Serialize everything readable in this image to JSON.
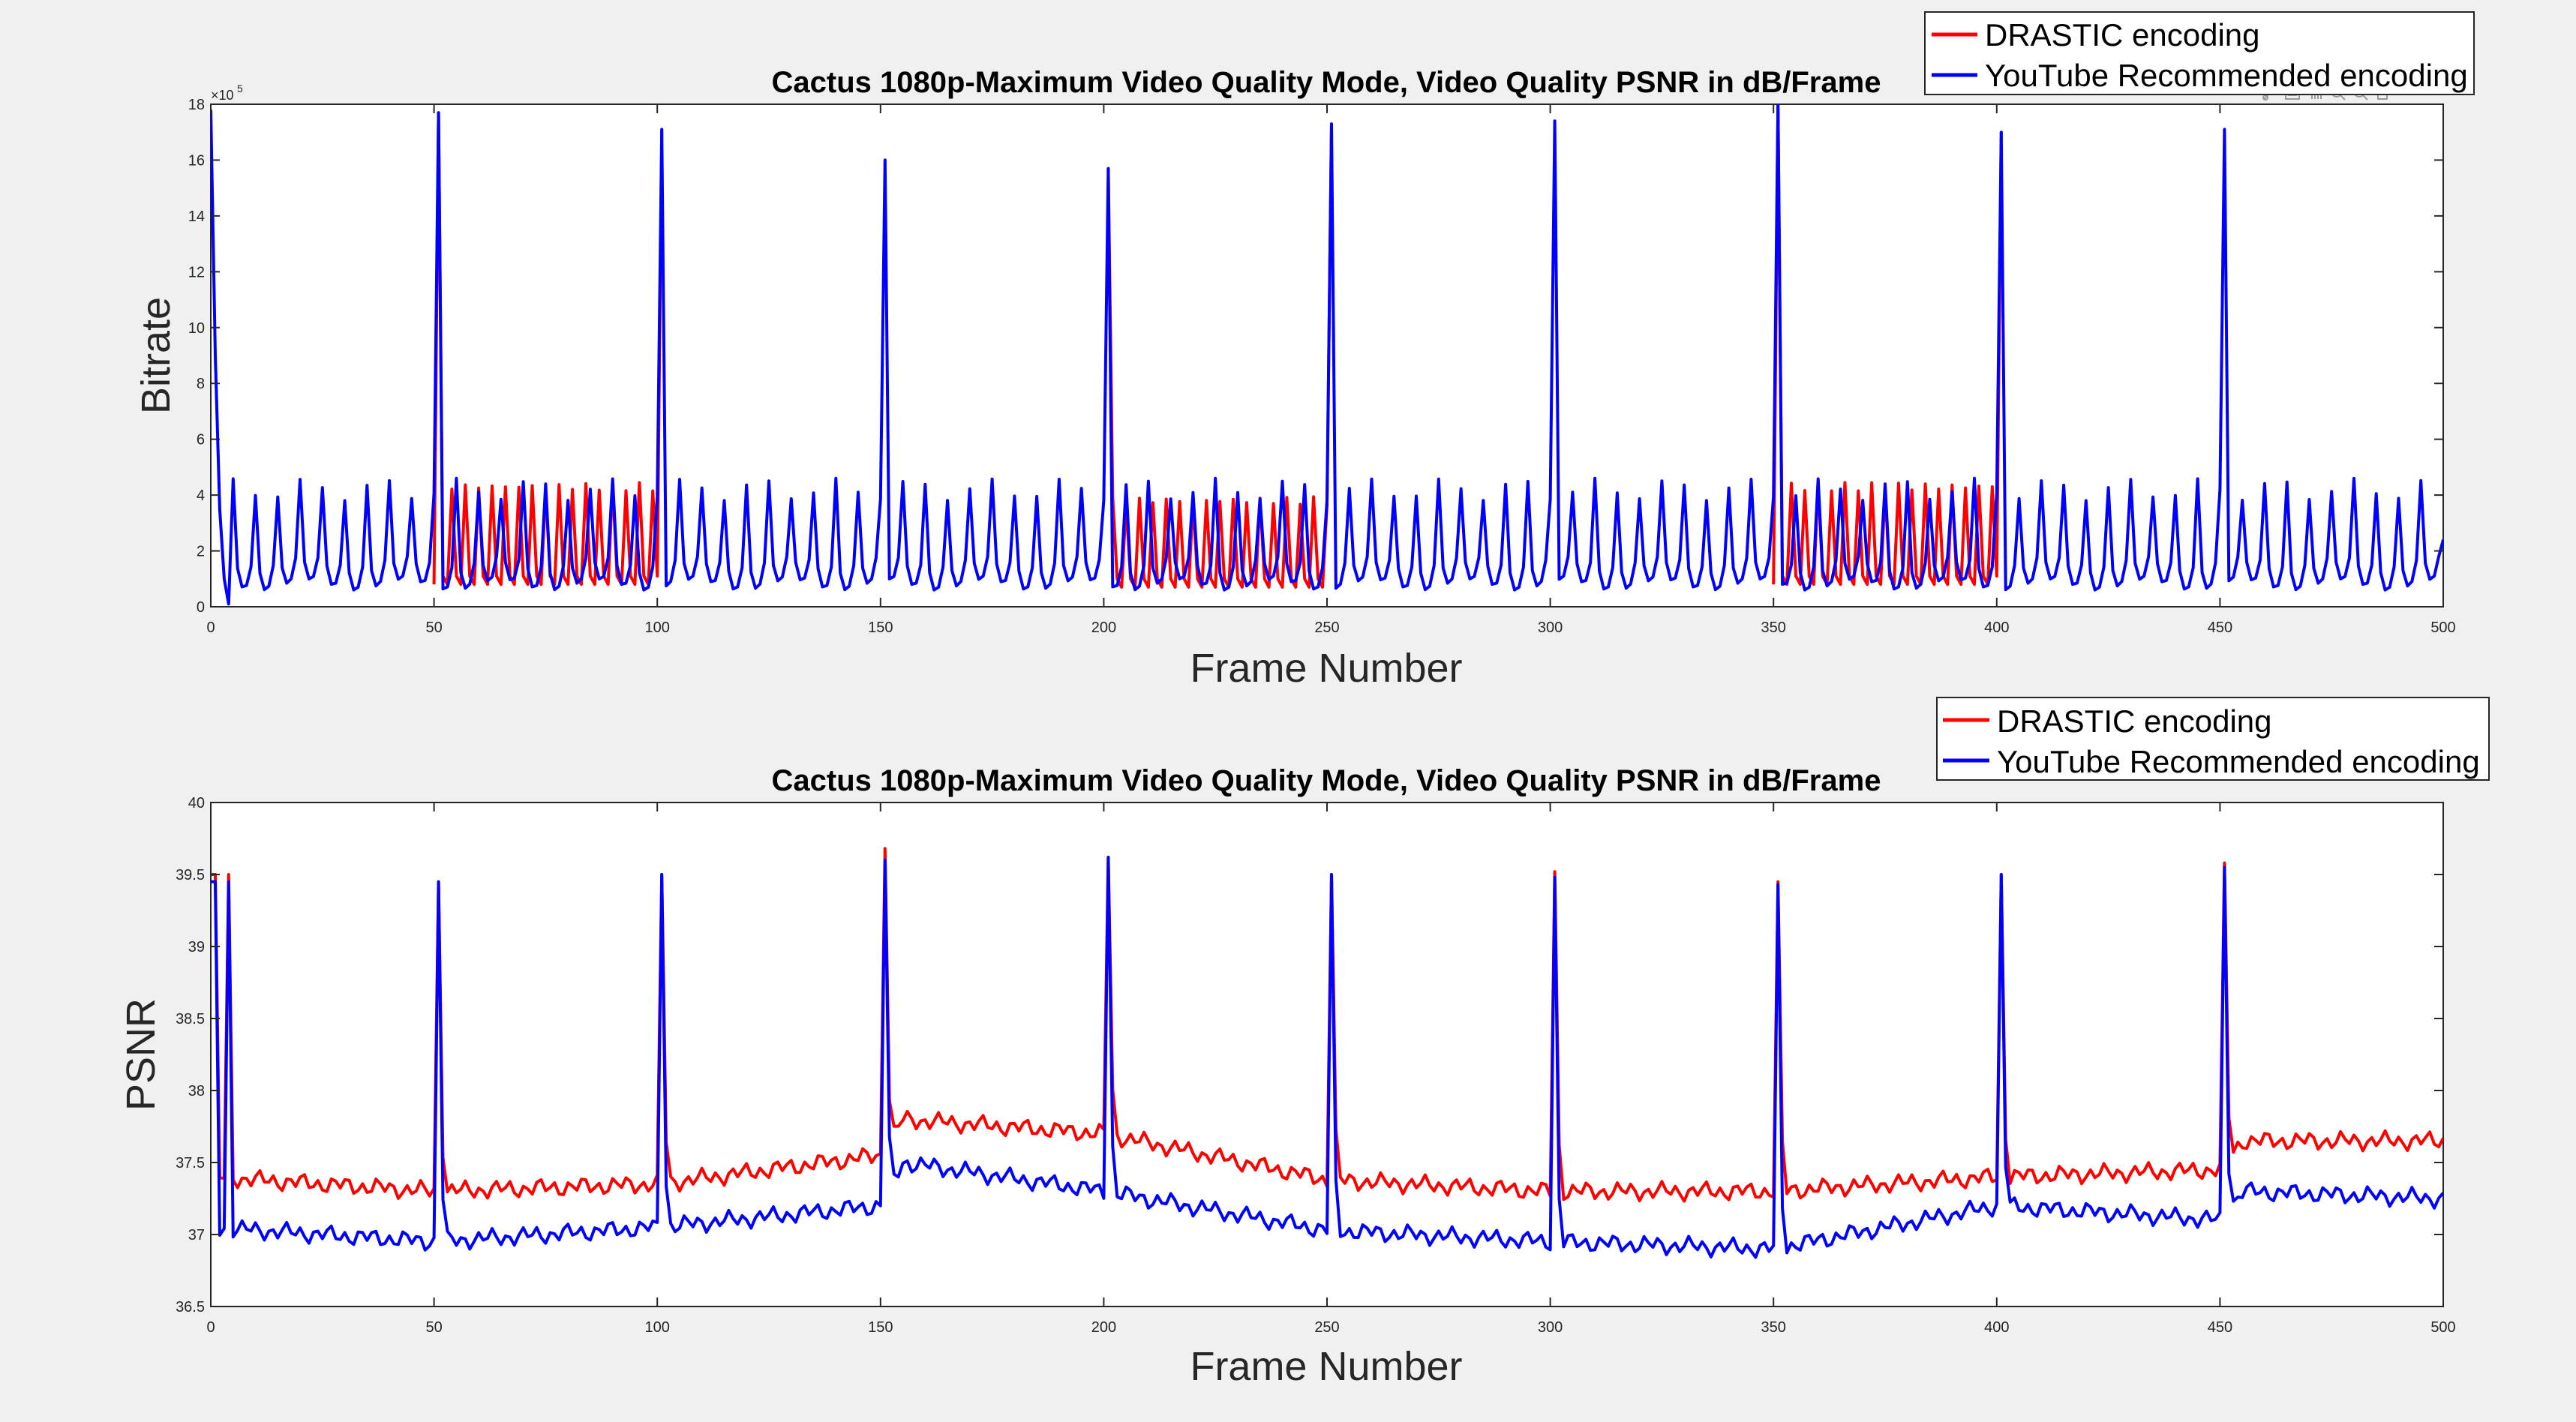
{
  "figure": {
    "toolbar": {
      "icons": [
        "brush-icon",
        "data-tips-icon",
        "pan-icon",
        "zoom-in-icon",
        "zoom-out-icon",
        "home-icon"
      ]
    }
  },
  "chart_data": [
    {
      "type": "line",
      "title": "Cactus 1080p-Maximum Video Quality Mode, Video Quality PSNR in dB/Frame",
      "xlabel": "Frame Number",
      "ylabel": "Bitrate",
      "xlim": [
        0,
        500
      ],
      "ylim": [
        0,
        1800000
      ],
      "y_exponent_label": "×10",
      "y_exponent_value": "5",
      "xticks": [
        "0",
        "50",
        "100",
        "150",
        "200",
        "250",
        "300",
        "350",
        "400",
        "450",
        "500"
      ],
      "yticks": [
        "0",
        "2",
        "4",
        "6",
        "8",
        "10",
        "12",
        "14",
        "16",
        "18"
      ],
      "grid": false,
      "legend_position": "top-right",
      "series": [
        {
          "name": "DRASTIC encoding",
          "color": "#ff0000",
          "segments": [
            {
              "start": 50,
              "end": 101,
              "peak_frames": [
                51,
                101
              ],
              "peak_values": [
                1770000,
                1710000
              ],
              "high": 430000,
              "low": 80000,
              "period": 3
            },
            {
              "start": 201,
              "end": 251,
              "peak_frames": [
                201,
                251
              ],
              "peak_values": [
                1570000,
                1730000
              ],
              "high": 380000,
              "low": 70000,
              "period": 3
            },
            {
              "start": 350,
              "end": 401,
              "peak_frames": [
                351,
                401
              ],
              "peak_values": [
                1800000,
                1700000
              ],
              "high": 430000,
              "low": 80000,
              "period": 3
            }
          ]
        },
        {
          "name": "YouTube Recommended encoding",
          "color": "#0000ff",
          "start_value": 1780000,
          "peak_frames": [
            51,
            101,
            151,
            201,
            251,
            301,
            351,
            401,
            451
          ],
          "peak_values": [
            1770000,
            1710000,
            1600000,
            1570000,
            1730000,
            1740000,
            1800000,
            1700000,
            1710000
          ],
          "cycle_period": 5,
          "cycle_high": 420000,
          "cycle_low": 80000,
          "end_value": 240000
        }
      ]
    },
    {
      "type": "line",
      "title": "Cactus 1080p-Maximum Video Quality Mode, Video Quality PSNR in dB/Frame",
      "xlabel": "Frame Number",
      "ylabel": "PSNR",
      "xlim": [
        0,
        500
      ],
      "ylim": [
        36.5,
        40
      ],
      "xticks": [
        "0",
        "50",
        "100",
        "150",
        "200",
        "250",
        "300",
        "350",
        "400",
        "450",
        "500"
      ],
      "yticks": [
        "36.5",
        "37",
        "37.5",
        "38",
        "38.5",
        "39",
        "39.5",
        "40"
      ],
      "grid": false,
      "legend_position": "top-right",
      "series": [
        {
          "name": "DRASTIC encoding",
          "color": "#ff0000",
          "base_x": [
            0,
            50,
            100,
            150,
            155,
            200,
            250,
            300,
            350,
            400,
            450,
            455,
            500
          ],
          "base_y": [
            37.4,
            37.3,
            37.35,
            37.55,
            37.8,
            37.7,
            37.38,
            37.3,
            37.3,
            37.4,
            37.45,
            37.65,
            37.65
          ],
          "peak_frames": [
            1,
            4,
            51,
            101,
            151,
            201,
            251,
            301,
            351,
            401,
            451
          ],
          "peak_values": [
            39.5,
            39.5,
            39.45,
            39.5,
            39.68,
            39.62,
            39.5,
            39.52,
            39.45,
            39.5,
            39.58
          ]
        },
        {
          "name": "YouTube Recommended encoding",
          "color": "#0000ff",
          "base_x": [
            0,
            50,
            100,
            150,
            155,
            200,
            250,
            300,
            350,
            400,
            450,
            455,
            500
          ],
          "base_y": [
            37.05,
            36.95,
            37.05,
            37.2,
            37.5,
            37.3,
            37.03,
            36.95,
            36.9,
            37.2,
            37.1,
            37.3,
            37.25
          ],
          "peak_frames": [
            1,
            4,
            51,
            101,
            151,
            201,
            251,
            301,
            351,
            401,
            451
          ],
          "peak_values": [
            39.45,
            39.45,
            39.45,
            39.5,
            39.6,
            39.62,
            39.5,
            39.48,
            39.43,
            39.5,
            39.55
          ]
        }
      ]
    }
  ]
}
